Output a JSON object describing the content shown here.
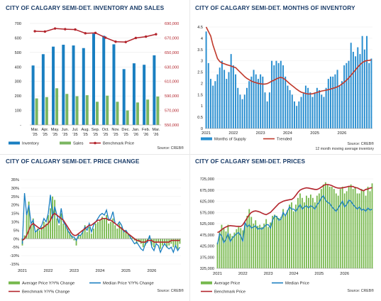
{
  "colors": {
    "title": "#1a3c68",
    "inventory_bar": "#1a7fc1",
    "sales_bar": "#7bb661",
    "benchmark_line": "#b3252d",
    "months_bar": "#2a8fd0",
    "trend_line": "#c0392b",
    "avg_bar": "#76b84c",
    "median_line": "#1a7fc1"
  },
  "chart_data": [
    {
      "id": "inventory",
      "type": "bar",
      "title": "CITY OF CALGARY SEMI-DET. INVENTORY AND SALES",
      "categories": [
        "Mar. '25",
        "Apr. '25",
        "May. '25",
        "Jun. '25",
        "Jul. '25",
        "Aug. '25",
        "Sep. '25",
        "Oct. '25",
        "Nov. '25",
        "Dec. '25",
        "Jan. '26",
        "Feb. '26",
        "Mar. '26"
      ],
      "y_ticks": [
        "700",
        "600",
        "500",
        "400",
        "300",
        "200",
        "100",
        "-"
      ],
      "y2_ticks": [
        "690,000",
        "670,000",
        "650,000",
        "630,000",
        "610,000",
        "590,000",
        "570,000",
        "550,000"
      ],
      "ylim": [
        0,
        700
      ],
      "y2lim": [
        550000,
        700000
      ],
      "series": [
        {
          "name": "Inventory",
          "kind": "bar",
          "values": [
            410,
            488,
            540,
            553,
            548,
            530,
            630,
            615,
            556,
            385,
            425,
            415,
            480
          ]
        },
        {
          "name": "Sales",
          "kind": "bar",
          "values": [
            183,
            192,
            253,
            214,
            198,
            205,
            160,
            202,
            160,
            100,
            155,
            175,
            196
          ]
        },
        {
          "name": "Benchmark Price",
          "kind": "line",
          "axis": "right",
          "values": [
            688500,
            688000,
            692500,
            691500,
            691000,
            685500,
            686000,
            679000,
            673000,
            672500,
            678500,
            680500,
            684000
          ]
        }
      ],
      "legend": [
        "Inventory",
        "Sales",
        "Benchmark Price"
      ],
      "source": "Source: CREB®"
    },
    {
      "id": "moi",
      "type": "bar",
      "title": "CITY OF CALGARY SEMI-DET. MONTHS OF INVENTORY",
      "x_ticks": [
        "2021",
        "2022",
        "2023",
        "2024",
        "2025",
        "2026"
      ],
      "y_ticks": [
        "4.5",
        "4",
        "3.5",
        "3",
        "2.5",
        "2",
        "1.5",
        "1",
        "0.5",
        "0"
      ],
      "ylim": [
        0,
        4.5
      ],
      "start_month": "2021-01",
      "series": [
        {
          "name": "Months of Supply",
          "kind": "bar",
          "values": [
            4.3,
            2.9,
            2.2,
            1.9,
            2.1,
            2.4,
            2.7,
            3.0,
            2.6,
            2.2,
            2.5,
            3.3,
            2.8,
            2.4,
            1.8,
            1.5,
            1.3,
            1.5,
            1.8,
            2.1,
            2.3,
            2.6,
            2.4,
            2.2,
            2.4,
            2.3,
            1.6,
            1.2,
            1.6,
            3.0,
            2.8,
            3.0,
            2.9,
            3.0,
            2.8,
            2.3,
            1.9,
            1.7,
            1.5,
            1.2,
            1.0,
            1.2,
            1.4,
            1.6,
            1.9,
            1.8,
            1.6,
            1.4,
            1.6,
            1.8,
            1.7,
            1.5,
            1.4,
            1.8,
            2.2,
            2.3,
            2.3,
            2.4,
            2.6,
            1.9,
            2.1,
            2.8,
            2.9,
            3.0,
            3.8,
            3.4,
            3.2,
            3.6,
            3.3,
            4.1,
            3.5,
            4.1,
            2.9,
            3.1
          ]
        },
        {
          "name": "Trended",
          "kind": "line",
          "values": [
            4.5,
            4.3,
            4.1,
            3.7,
            3.4,
            3.1,
            2.97,
            2.9,
            2.87,
            2.83,
            2.8,
            2.77,
            2.73,
            2.7,
            2.6,
            2.5,
            2.4,
            2.3,
            2.22,
            2.16,
            2.1,
            2.06,
            2.03,
            2.0,
            1.98,
            1.97,
            1.97,
            1.99,
            2.04,
            2.1,
            2.14,
            2.2,
            2.24,
            2.27,
            2.23,
            2.16,
            2.07,
            1.98,
            1.9,
            1.82,
            1.74,
            1.67,
            1.61,
            1.58,
            1.55,
            1.53,
            1.53,
            1.54,
            1.57,
            1.6,
            1.63,
            1.66,
            1.68,
            1.7,
            1.72,
            1.75,
            1.78,
            1.81,
            1.85,
            1.9,
            1.97,
            2.05,
            2.14,
            2.24,
            2.36,
            2.48,
            2.6,
            2.72,
            2.83,
            2.92,
            2.98,
            3.01,
            3.02,
            3.04
          ]
        }
      ],
      "legend": [
        "Months of Supply",
        "Trended"
      ],
      "source": "Source: CREB®",
      "note": "12 month moving average inventory"
    },
    {
      "id": "price_change",
      "type": "bar",
      "title": "CITY OF CALGARY SEMI-DET. PRICE CHANGE",
      "x_ticks": [
        "2021",
        "2022",
        "2023",
        "2024",
        "2025",
        "2026"
      ],
      "y_ticks": [
        "35%",
        "30%",
        "25%",
        "20%",
        "15%",
        "10%",
        "5%",
        "0%",
        "-5%",
        "-10%",
        "-15%"
      ],
      "ylim": [
        -15,
        35
      ],
      "start_month": "2021-01",
      "series": [
        {
          "name": "Average Price Y/Y% Change",
          "kind": "bar",
          "values": [
            -4,
            2,
            16,
            22,
            8,
            12,
            4,
            6,
            5,
            7,
            10,
            9,
            14,
            18,
            25,
            23,
            12,
            8,
            15,
            9,
            8,
            6,
            4,
            2,
            -1,
            -4,
            3,
            2,
            5,
            8,
            4,
            7,
            3,
            6,
            9,
            10,
            11,
            13,
            12,
            14,
            9,
            10,
            12,
            8,
            6,
            9,
            7,
            4,
            5,
            3,
            2,
            1,
            -1,
            -3,
            -2,
            -3,
            -5,
            -4,
            -2,
            1,
            -4,
            -5,
            -3,
            -2,
            -6,
            -4,
            -3,
            -5,
            -4,
            -3,
            -5,
            -4,
            -6,
            -3
          ]
        },
        {
          "name": "Median Price Y/Y% Change",
          "kind": "line",
          "values": [
            -3,
            27,
            14,
            20,
            9,
            11,
            4,
            5,
            6,
            8,
            12,
            10,
            15,
            26,
            12,
            19,
            14,
            9,
            18,
            10,
            8,
            5,
            3,
            1,
            1,
            -1,
            2,
            2,
            4,
            7,
            5,
            9,
            4,
            8,
            10,
            12,
            14,
            15,
            14,
            17,
            11,
            12,
            16,
            9,
            8,
            10,
            8,
            4,
            5,
            3,
            1,
            -1,
            -3,
            -2,
            -4,
            -6,
            -7,
            -3,
            -2,
            2,
            -5,
            -7,
            -3,
            -4,
            -8,
            -5,
            -3,
            -5,
            -6,
            -5,
            -8,
            -4,
            -7,
            -5
          ]
        },
        {
          "name": "Benchmark Y/Y% Change",
          "kind": "line",
          "values": [
            -1,
            0,
            2,
            5,
            8,
            9,
            8,
            7,
            6,
            6,
            7,
            8,
            9,
            11,
            14,
            15,
            14,
            13,
            12,
            11,
            9,
            7,
            5,
            3,
            2,
            2,
            3,
            4,
            5,
            6,
            7,
            8,
            8,
            9,
            10,
            11,
            11,
            12,
            12,
            12,
            11,
            11,
            10,
            9,
            8,
            7,
            6,
            5,
            4,
            3,
            2,
            1,
            0,
            -1,
            -1,
            -2,
            -2,
            -2,
            -1,
            -1,
            -1,
            -2,
            -2,
            -2,
            -2,
            -2,
            -2,
            -2,
            -2,
            -1,
            -1,
            -1,
            -1,
            -1
          ]
        }
      ],
      "legend": [
        "Average Price Y/Y% Change",
        "Median Price Y/Y% Change",
        "Benchmark Y/Y% Change"
      ],
      "source": "Source: CREB®"
    },
    {
      "id": "prices",
      "type": "bar",
      "title": "CITY OF CALGARY SEMI-DET. PRICES",
      "x_ticks": [
        "2021",
        "2022",
        "2023",
        "2024",
        "2025",
        "2026"
      ],
      "y_ticks": [
        "725,000",
        "675,000",
        "625,000",
        "575,000",
        "525,000",
        "475,000",
        "425,000",
        "375,000",
        "325,000"
      ],
      "ylim": [
        325000,
        725000
      ],
      "start_month": "2021-01",
      "series": [
        {
          "name": "Average Price",
          "kind": "bar",
          "values": [
            440000,
            490000,
            520000,
            505000,
            490000,
            520000,
            480000,
            470000,
            485000,
            500000,
            510000,
            505000,
            495000,
            520000,
            560000,
            590000,
            555000,
            525000,
            540000,
            515000,
            520000,
            510000,
            525000,
            545000,
            510000,
            530000,
            560000,
            565000,
            560000,
            550000,
            555000,
            590000,
            560000,
            585000,
            610000,
            620000,
            580000,
            610000,
            640000,
            660000,
            640000,
            620000,
            650000,
            640000,
            655000,
            640000,
            620000,
            650000,
            660000,
            680000,
            700000,
            710000,
            700000,
            690000,
            690000,
            680000,
            660000,
            650000,
            680000,
            690000,
            660000,
            670000,
            690000,
            700000,
            680000,
            690000,
            660000,
            660000,
            680000,
            670000,
            650000,
            690000,
            670000,
            705000
          ]
        },
        {
          "name": "Median Price",
          "kind": "line",
          "values": [
            432000,
            480000,
            470000,
            440000,
            455000,
            480000,
            445000,
            460000,
            470000,
            480000,
            485000,
            470000,
            445000,
            530000,
            510000,
            520000,
            505000,
            510000,
            515000,
            500000,
            505000,
            500000,
            510000,
            520000,
            520000,
            505000,
            540000,
            560000,
            555000,
            540000,
            545000,
            575000,
            560000,
            580000,
            600000,
            590000,
            590000,
            580000,
            595000,
            610000,
            590000,
            600000,
            605000,
            595000,
            605000,
            600000,
            590000,
            610000,
            620000,
            640000,
            650000,
            630000,
            620000,
            615000,
            600000,
            590000,
            580000,
            595000,
            610000,
            625000,
            600000,
            610000,
            630000,
            625000,
            610000,
            600000,
            590000,
            600000,
            585000,
            590000,
            580000,
            595000,
            585000,
            590000
          ]
        },
        {
          "name": "Benchmark Price",
          "kind": "line",
          "values": [
            485000,
            490000,
            498000,
            505000,
            510000,
            514000,
            516000,
            515000,
            514000,
            513000,
            513000,
            512000,
            520000,
            535000,
            550000,
            565000,
            575000,
            580000,
            582000,
            580000,
            577000,
            572000,
            568000,
            565000,
            570000,
            575000,
            585000,
            595000,
            605000,
            615000,
            620000,
            625000,
            628000,
            630000,
            632000,
            633000,
            640000,
            652000,
            665000,
            675000,
            680000,
            683000,
            685000,
            684000,
            682000,
            680000,
            678000,
            678000,
            682000,
            688000,
            695000,
            700000,
            700000,
            698000,
            695000,
            690000,
            686000,
            684000,
            684000,
            685000,
            687000,
            689000,
            692000,
            691000,
            691000,
            686000,
            685000,
            680000,
            675000,
            672000,
            678000,
            680000,
            684000,
            686000
          ]
        }
      ],
      "legend": [
        "Average Price",
        "Median Price",
        "Benchmark Price"
      ],
      "source": "Source: CREB®"
    }
  ]
}
